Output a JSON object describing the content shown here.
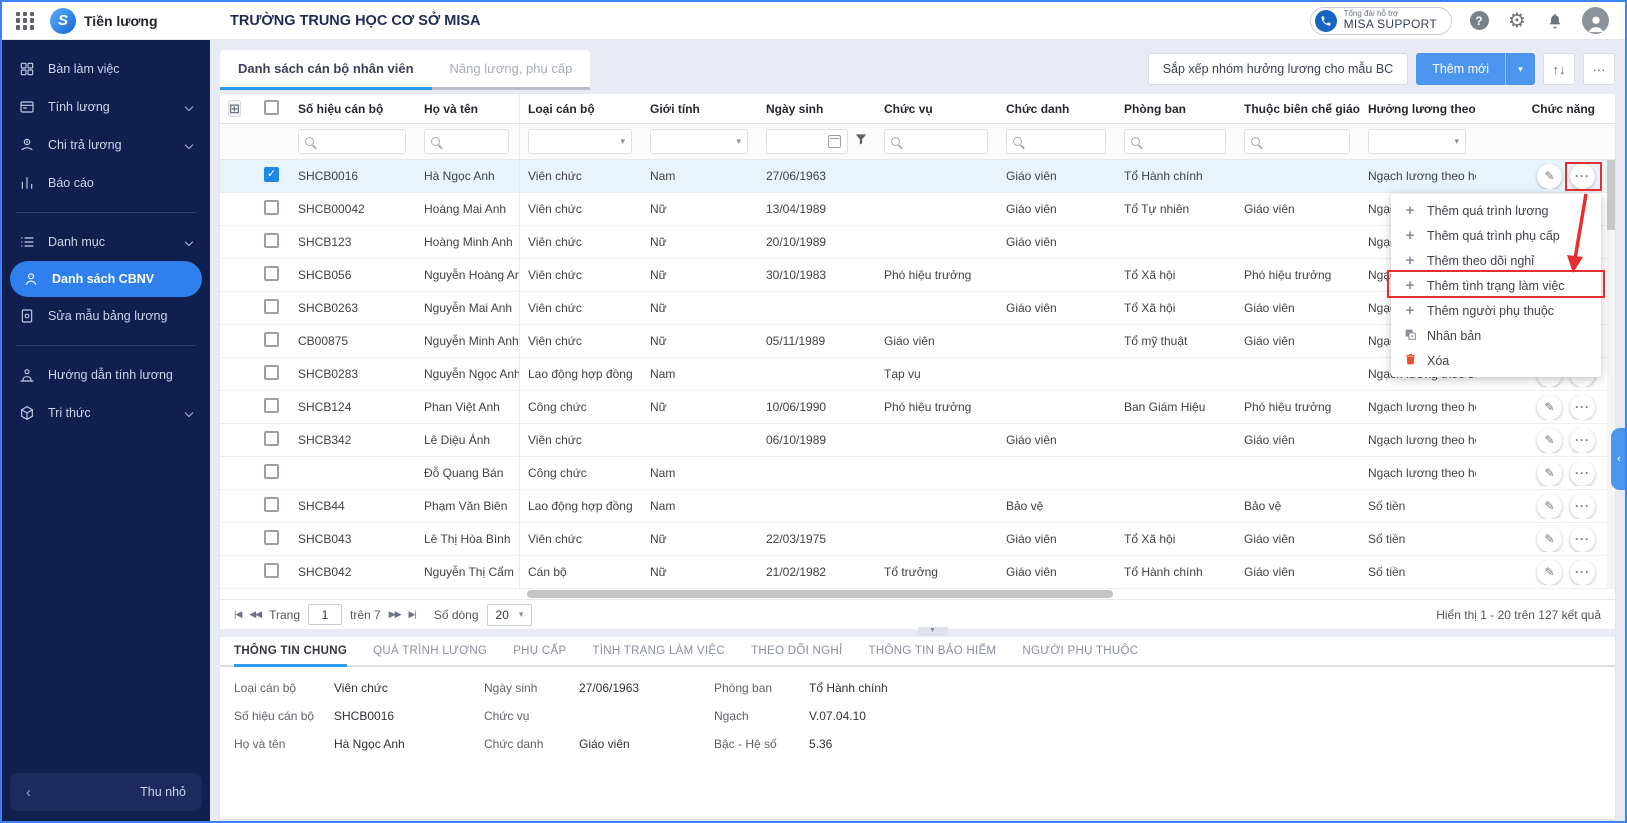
{
  "topbar": {
    "app_name": "Tiền lương",
    "org_name": "TRƯỜNG TRUNG HỌC CƠ SỞ MISA",
    "support_line1": "Tổng đài hỗ trợ",
    "support_line2": "MISA SUPPORT"
  },
  "sidebar": {
    "items": [
      {
        "id": "ban-lam-viec",
        "icon": "dashboard-icon",
        "label": "Bàn làm việc",
        "chevron": false,
        "active": false,
        "divider_after": false
      },
      {
        "id": "tinh-luong",
        "icon": "salary-calc-icon",
        "label": "Tính lương",
        "chevron": true,
        "active": false,
        "divider_after": false
      },
      {
        "id": "chi-tra-luong",
        "icon": "payment-icon",
        "label": "Chi trả lương",
        "chevron": true,
        "active": false,
        "divider_after": false
      },
      {
        "id": "bao-cao",
        "icon": "report-icon",
        "label": "Báo cáo",
        "chevron": false,
        "active": false,
        "divider_after": true
      },
      {
        "id": "danh-muc",
        "icon": "category-icon",
        "label": "Danh mục",
        "chevron": true,
        "active": false,
        "divider_after": false
      },
      {
        "id": "danh-sach-cbnv",
        "icon": "employee-icon",
        "label": "Danh sách CBNV",
        "chevron": false,
        "active": true,
        "divider_after": false
      },
      {
        "id": "sua-mau-bang-luong",
        "icon": "template-icon",
        "label": "Sửa mẫu bảng lương",
        "chevron": false,
        "active": false,
        "divider_after": true
      },
      {
        "id": "huong-dan-tinh-luong",
        "icon": "guide-icon",
        "label": "Hướng dẫn tính lương",
        "chevron": false,
        "active": false,
        "divider_after": false
      },
      {
        "id": "tri-thuc",
        "icon": "knowledge-icon",
        "label": "Tri thức",
        "chevron": true,
        "active": false,
        "divider_after": false
      }
    ],
    "collapse_label": "Thu nhỏ"
  },
  "main": {
    "tabs": [
      {
        "label": "Danh sách cán bộ nhân viên",
        "active": true
      },
      {
        "label": "Nâng lương, phụ cấp",
        "active": false
      }
    ],
    "toolbar": {
      "arrange_button": "Sắp xếp nhóm hưởng lương cho mẫu BC",
      "add_button": "Thêm mới"
    },
    "table": {
      "columns": [
        {
          "key": "code",
          "label": "Số hiệu cán bộ",
          "filter": "search"
        },
        {
          "key": "name",
          "label": "Họ và tên",
          "filter": "search"
        },
        {
          "key": "type",
          "label": "Loại cán bộ",
          "filter": "select"
        },
        {
          "key": "gender",
          "label": "Giới tính",
          "filter": "select"
        },
        {
          "key": "dob",
          "label": "Ngày sinh",
          "filter": "date"
        },
        {
          "key": "position",
          "label": "Chức vụ",
          "filter": "search"
        },
        {
          "key": "title",
          "label": "Chức danh",
          "filter": "search"
        },
        {
          "key": "department",
          "label": "Phòng ban",
          "filter": "search"
        },
        {
          "key": "edu",
          "label": "Thuộc biên chế giáo dục",
          "filter": "search"
        },
        {
          "key": "salary",
          "label": "Hưởng lương theo",
          "filter": "select"
        },
        {
          "key": "actions",
          "label": "Chức năng",
          "filter": "none"
        }
      ],
      "rows": [
        {
          "checked": true,
          "selected": true,
          "code": "SHCB0016",
          "name": "Hà Ngọc Anh",
          "type": "Viên chức",
          "gender": "Nam",
          "dob": "27/06/1963",
          "position": "",
          "title": "Giáo viên",
          "department": "Tổ Hành chính",
          "edu": "",
          "salary": "Ngạch lương theo hệ :"
        },
        {
          "checked": false,
          "selected": false,
          "code": "SHCB00042",
          "name": "Hoàng Mai Anh",
          "type": "Viên chức",
          "gender": "Nữ",
          "dob": "13/04/1989",
          "position": "",
          "title": "Giáo viên",
          "department": "Tổ Tự nhiên",
          "edu": "Giáo viên",
          "salary": "Ngạch lương theo hệ :"
        },
        {
          "checked": false,
          "selected": false,
          "code": "SHCB123",
          "name": "Hoàng Minh Anh",
          "type": "Viên chức",
          "gender": "Nữ",
          "dob": "20/10/1989",
          "position": "",
          "title": "Giáo viên",
          "department": "",
          "edu": "",
          "salary": "Ngạch lương theo hệ :"
        },
        {
          "checked": false,
          "selected": false,
          "code": "SHCB056",
          "name": "Nguyễn Hoàng Anh",
          "type": "Viên chức",
          "gender": "Nữ",
          "dob": "30/10/1983",
          "position": "Phó hiệu trưởng",
          "title": "",
          "department": "Tổ Xã hội",
          "edu": "Phó hiệu trưởng",
          "salary": "Ngạch lương theo hệ :"
        },
        {
          "checked": false,
          "selected": false,
          "code": "SHCB0263",
          "name": "Nguyễn Mai Anh",
          "type": "Viên chức",
          "gender": "Nữ",
          "dob": "",
          "position": "",
          "title": "Giáo viên",
          "department": "Tổ Xã hội",
          "edu": "Giáo viên",
          "salary": "Ngạch lương theo hệ :"
        },
        {
          "checked": false,
          "selected": false,
          "code": "CB00875",
          "name": "Nguyễn Minh Anh",
          "type": "Viên chức",
          "gender": "Nữ",
          "dob": "05/11/1989",
          "position": "Giáo viên",
          "title": "",
          "department": "Tổ mỹ thuật",
          "edu": "Giáo viên",
          "salary": "Ngạch lương theo hệ :"
        },
        {
          "checked": false,
          "selected": false,
          "code": "SHCB0283",
          "name": "Nguyễn Ngọc Anh",
          "type": "Lao động hợp đồng",
          "gender": "Nam",
          "dob": "",
          "position": "Tạp vụ",
          "title": "",
          "department": "",
          "edu": "",
          "salary": "Ngạch lương theo số :"
        },
        {
          "checked": false,
          "selected": false,
          "code": "SHCB124",
          "name": "Phan Việt Anh",
          "type": "Công chức",
          "gender": "Nữ",
          "dob": "10/06/1990",
          "position": "Phó hiệu trưởng",
          "title": "",
          "department": "Ban Giám Hiệu",
          "edu": "Phó hiệu trưởng",
          "salary": "Ngạch lương theo hệ :"
        },
        {
          "checked": false,
          "selected": false,
          "code": "SHCB342",
          "name": "Lê Diệu Ánh",
          "type": "Viên chức",
          "gender": "",
          "dob": "06/10/1989",
          "position": "",
          "title": "Giáo viên",
          "department": "",
          "edu": "Giáo viên",
          "salary": "Ngạch lương theo hệ :"
        },
        {
          "checked": false,
          "selected": false,
          "code": "",
          "name": "Đỗ Quang Bán",
          "type": "Công chức",
          "gender": "Nam",
          "dob": "",
          "position": "",
          "title": "",
          "department": "",
          "edu": "",
          "salary": "Ngạch lương theo hệ :"
        },
        {
          "checked": false,
          "selected": false,
          "code": "SHCB44",
          "name": "Phạm Văn Biên",
          "type": "Lao động hợp đồng",
          "gender": "Nam",
          "dob": "",
          "position": "",
          "title": "Bảo vệ",
          "department": "",
          "edu": "Bảo vệ",
          "salary": "Số tiền"
        },
        {
          "checked": false,
          "selected": false,
          "code": "SHCB043",
          "name": "Lê Thị Hòa Bình",
          "type": "Viên chức",
          "gender": "Nữ",
          "dob": "22/03/1975",
          "position": "",
          "title": "Giáo viên",
          "department": "Tổ Xã hội",
          "edu": "Giáo viên",
          "salary": "Số tiền"
        },
        {
          "checked": false,
          "selected": false,
          "code": "SHCB042",
          "name": "Nguyễn Thị Cẩm",
          "type": "Cán bộ",
          "gender": "Nữ",
          "dob": "21/02/1982",
          "position": "Tổ trưởng",
          "title": "Giáo viên",
          "department": "Tổ Hành chính",
          "edu": "Giáo viên",
          "salary": "Số tiền"
        }
      ]
    },
    "pagination": {
      "page_label": "Trang",
      "page_value": "1",
      "page_total": "trên 7",
      "rows_label": "Số dòng",
      "rows_value": "20",
      "summary": "Hiển thị 1 - 20 trên 127 kết quả"
    },
    "context_menu": {
      "items": [
        {
          "icon": "plus-icon",
          "label": "Thêm quá trình lương",
          "annotated": false
        },
        {
          "icon": "plus-icon",
          "label": "Thêm quá trình phụ cấp",
          "annotated": false
        },
        {
          "icon": "plus-icon",
          "label": "Thêm theo dõi nghỉ",
          "annotated": false
        },
        {
          "icon": "plus-icon",
          "label": "Thêm tình trạng làm việc",
          "annotated": true
        },
        {
          "icon": "plus-icon",
          "label": "Thêm người phụ thuộc",
          "annotated": false
        },
        {
          "icon": "copy-icon",
          "label": "Nhân bản",
          "annotated": false
        },
        {
          "icon": "trash-icon",
          "label": "Xóa",
          "annotated": false
        }
      ]
    },
    "detail": {
      "tabs": [
        {
          "label": "THÔNG TIN CHUNG",
          "active": true
        },
        {
          "label": "QUÁ TRÌNH LƯƠNG",
          "active": false
        },
        {
          "label": "PHỤ CẤP",
          "active": false
        },
        {
          "label": "TÌNH TRẠNG LÀM VIỆC",
          "active": false
        },
        {
          "label": "THEO DÕI NGHỈ",
          "active": false
        },
        {
          "label": "THÔNG TIN BẢO HIỂM",
          "active": false
        },
        {
          "label": "NGƯỜI PHỤ THUỘC",
          "active": false
        }
      ],
      "fields": [
        {
          "label": "Loại cán bộ",
          "value": "Viên chức"
        },
        {
          "label": "Ngày sinh",
          "value": "27/06/1963"
        },
        {
          "label": "Phòng ban",
          "value": "Tổ Hành chính"
        },
        {
          "label": "Số hiệu cán bộ",
          "value": "SHCB0016"
        },
        {
          "label": "Chức vụ",
          "value": ""
        },
        {
          "label": "Ngạch",
          "value": "V.07.04.10"
        },
        {
          "label": "Họ và tên",
          "value": "Hà Ngọc Anh"
        },
        {
          "label": "Chức danh",
          "value": "Giáo viên"
        },
        {
          "label": "Bậc - Hệ số",
          "value": "5.36"
        }
      ]
    }
  },
  "colors": {
    "sidebar_bg": "#101f4e",
    "active_item": "#2f80ed",
    "primary_button": "#4c96f0",
    "tab_underline": "#2e9bf0",
    "selected_row": "#e8f3fc",
    "annotation_red": "#e62e2e"
  }
}
